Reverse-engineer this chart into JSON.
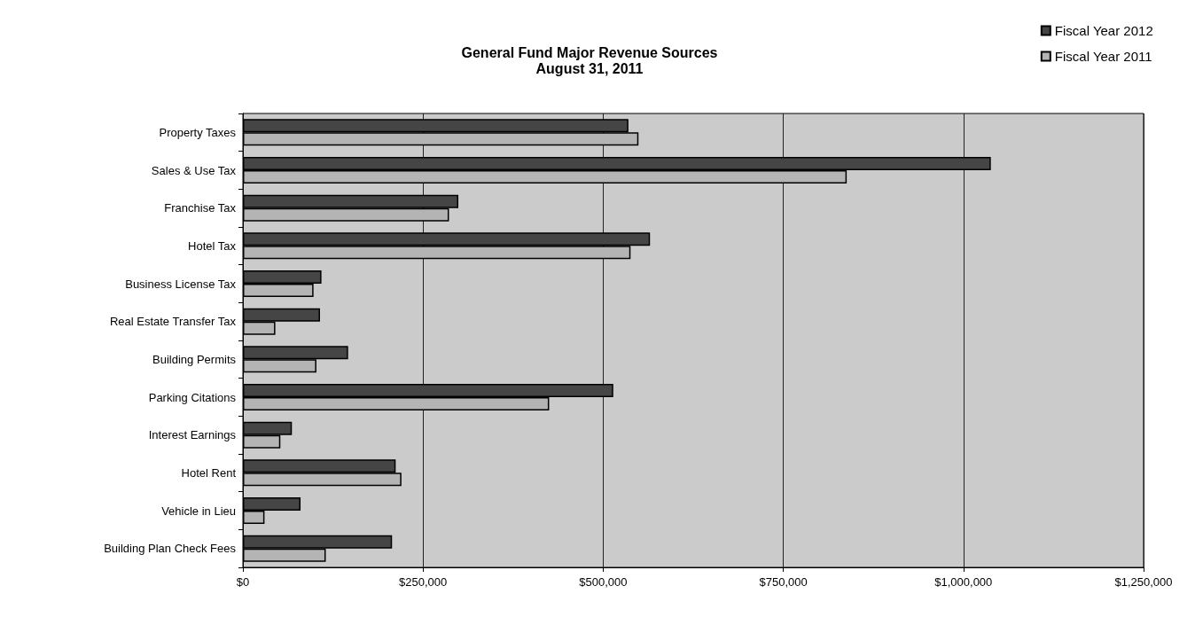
{
  "chart_data": {
    "type": "bar",
    "orientation": "horizontal",
    "title": "General Fund Major Revenue Sources",
    "subtitle": "August 31, 2011",
    "categories": [
      "Property Taxes",
      "Sales & Use Tax",
      "Franchise Tax",
      "Hotel Tax",
      "Business License Tax",
      "Real Estate Transfer Tax",
      "Building Permits",
      "Parking Citations",
      "Interest Earnings",
      "Hotel Rent",
      "Vehicle in Lieu",
      "Building Plan Check Fees"
    ],
    "series": [
      {
        "name": "Fiscal Year 2012",
        "color": "#454545",
        "values": [
          535000,
          1038000,
          299000,
          565000,
          109000,
          107000,
          146000,
          514000,
          68000,
          212000,
          80000,
          207000
        ]
      },
      {
        "name": "Fiscal Year 2011",
        "color": "#b4b4b4",
        "values": [
          549000,
          838000,
          286000,
          538000,
          98000,
          45000,
          102000,
          425000,
          52000,
          220000,
          30000,
          115000
        ]
      }
    ],
    "xlim": [
      0,
      1250000
    ],
    "xticks": [
      {
        "value": 0,
        "label": "$0"
      },
      {
        "value": 250000,
        "label": "$250,000"
      },
      {
        "value": 500000,
        "label": "$500,000"
      },
      {
        "value": 750000,
        "label": "$750,000"
      },
      {
        "value": 1000000,
        "label": "$1,000,000"
      },
      {
        "value": 1250000,
        "label": "$1,250,000"
      }
    ],
    "grid": "x",
    "legend": "top right"
  }
}
